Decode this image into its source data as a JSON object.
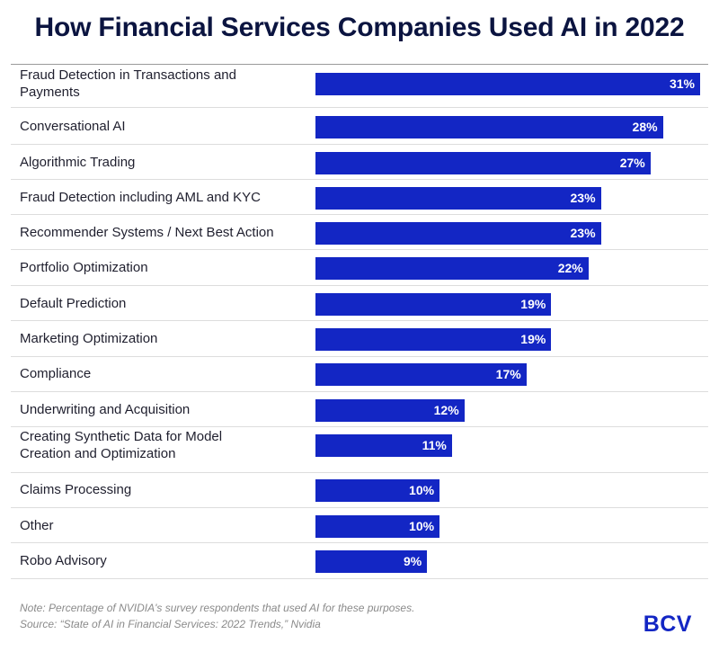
{
  "chart_data": {
    "type": "bar",
    "orientation": "horizontal",
    "title": "How Financial Services Companies Used AI in 2022",
    "categories": [
      "Fraud Detection in Transactions and Payments",
      "Conversational AI",
      "Algorithmic Trading",
      "Fraud Detection including AML and KYC",
      "Recommender Systems / Next Best Action",
      "Portfolio Optimization",
      "Default Prediction",
      "Marketing Optimization",
      "Compliance",
      "Underwriting and Acquisition",
      "Creating Synthetic Data for Model Creation and Optimization",
      "Claims Processing",
      "Other",
      "Robo Advisory"
    ],
    "values": [
      31,
      28,
      27,
      23,
      23,
      22,
      19,
      19,
      17,
      12,
      11,
      10,
      10,
      9
    ],
    "value_labels": [
      "31%",
      "28%",
      "27%",
      "23%",
      "23%",
      "22%",
      "19%",
      "19%",
      "17%",
      "12%",
      "11%",
      "10%",
      "10%",
      "9%"
    ],
    "xlim": [
      0,
      31
    ],
    "grid": false,
    "bar_color": "#1326c4"
  },
  "footer": {
    "note": "Note: Percentage of NVIDIA's survey respondents that used AI for these purposes.",
    "source": "Source: “State of AI in Financial Services: 2022 Trends,” Nvidia"
  },
  "brand": {
    "logo_text": "BCV",
    "color": "#1326c4"
  }
}
